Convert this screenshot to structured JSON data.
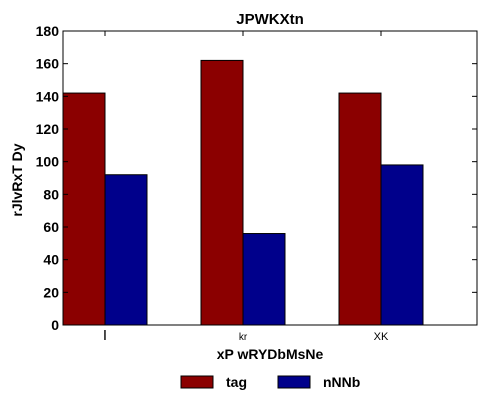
{
  "chart_data": {
    "type": "bar",
    "title": "JPWKXtn",
    "xlabel": "xP wRYDbMsNe",
    "ylabel": "rJlvRxT Dy",
    "categories": [
      "I",
      "kr",
      "XK"
    ],
    "ylim": [
      0,
      180
    ],
    "yticks": [
      0,
      20,
      40,
      60,
      80,
      100,
      120,
      140,
      160,
      180
    ],
    "grid": false,
    "legend_placement": "bottom-center",
    "series": [
      {
        "name": "tag",
        "color": "#8b0000",
        "values": [
          142,
          162,
          142
        ]
      },
      {
        "name": "nNNb",
        "color": "#00008b",
        "values": [
          92,
          56,
          98
        ]
      }
    ]
  }
}
